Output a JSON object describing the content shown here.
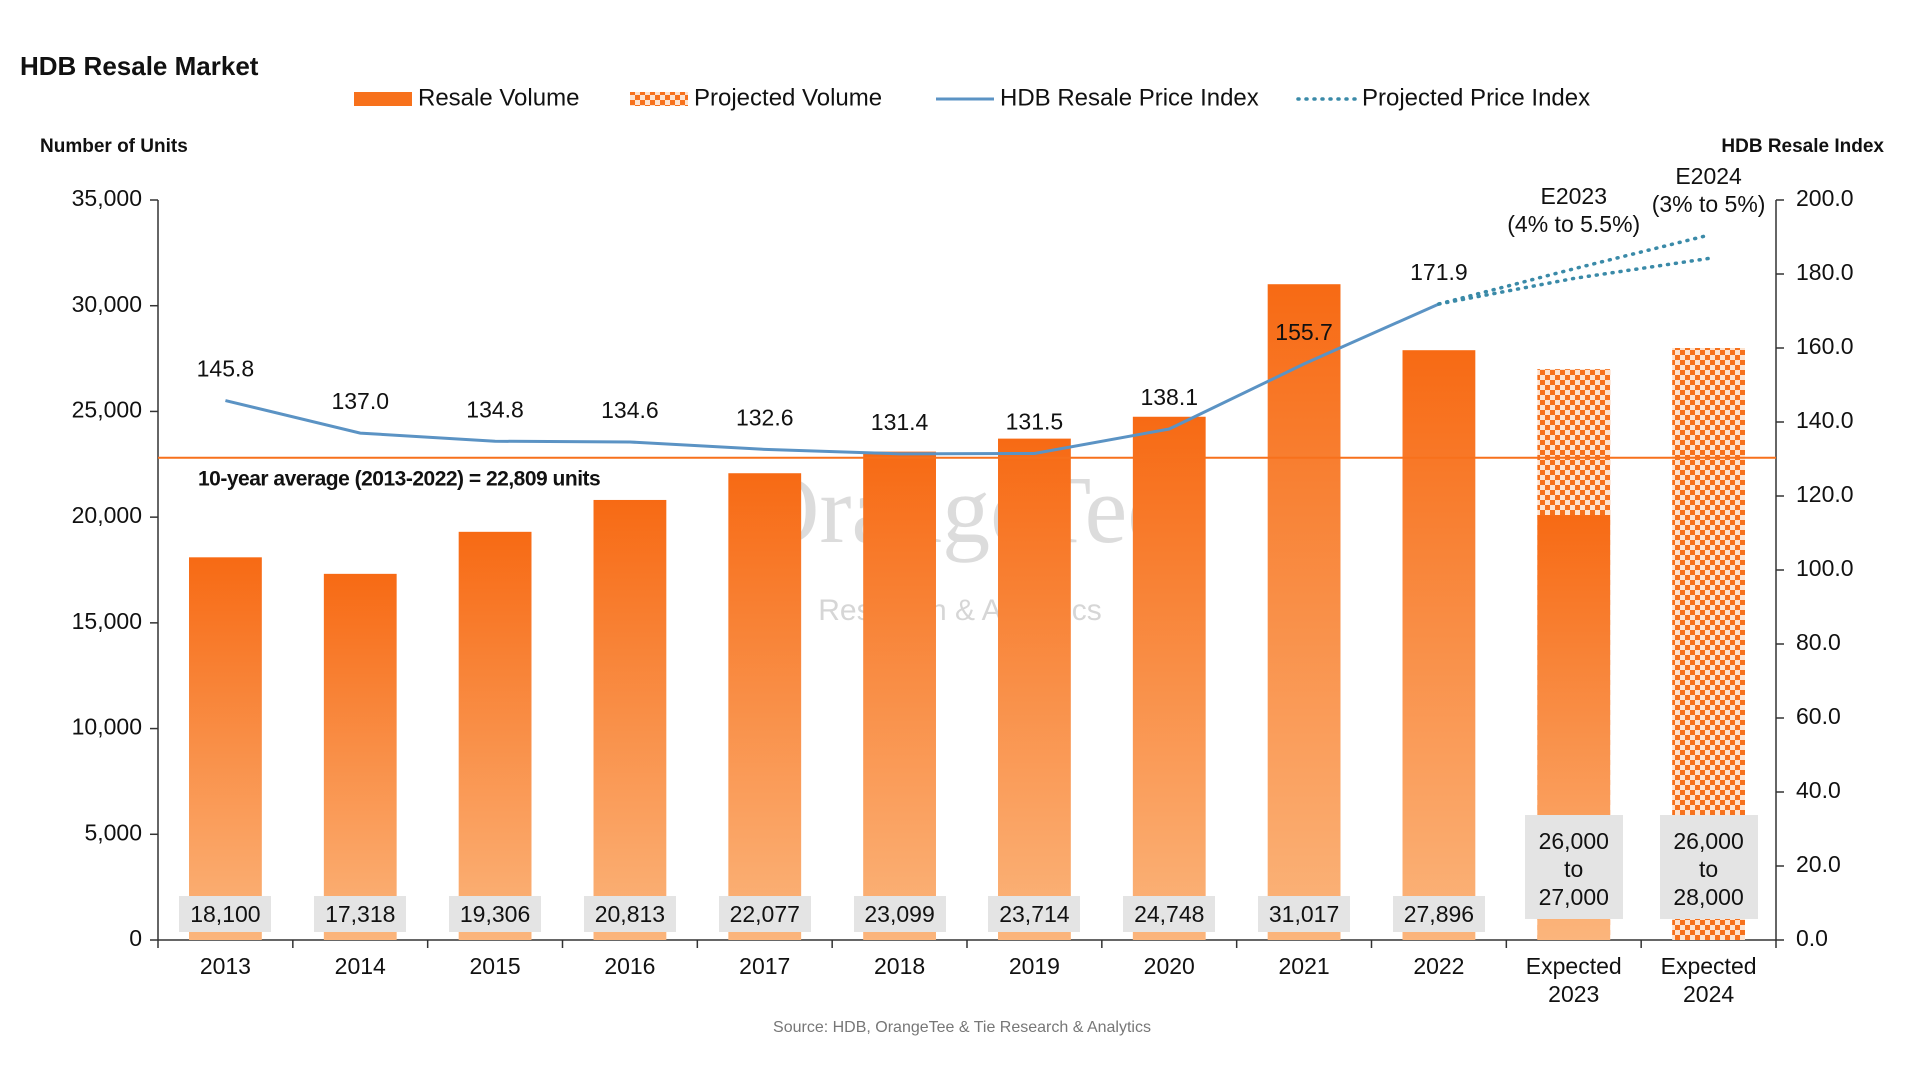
{
  "chart_data": {
    "type": "bar",
    "title": "HDB Resale Market",
    "y_label": "Number of Units",
    "y2_label": "HDB Resale Index",
    "source": "Source: HDB, OrangeTee & Tie Research & Analytics",
    "watermark": [
      "OrangeTee",
      "Research & Analytics"
    ],
    "categories": [
      "2013",
      "2014",
      "2015",
      "2016",
      "2017",
      "2018",
      "2019",
      "2020",
      "2021",
      "2022",
      "Expected 2023",
      "Expected 2024"
    ],
    "series": [
      {
        "name": "Resale Volume",
        "kind": "bar",
        "color": "#f7711c",
        "values": [
          18100,
          17318,
          19306,
          20813,
          22077,
          23099,
          23714,
          24748,
          31017,
          27896,
          20100,
          null
        ],
        "value_labels": [
          "18,100",
          "17,318",
          "19,306",
          "20,813",
          "22,077",
          "23,099",
          "23,714",
          "24,748",
          "31,017",
          "27,896",
          null,
          null
        ]
      },
      {
        "name": "Projected Volume",
        "kind": "hatched-bar",
        "color": "#f7711c",
        "values": [
          null,
          null,
          null,
          null,
          null,
          null,
          null,
          null,
          null,
          null,
          27000,
          28000
        ],
        "value_labels": [
          null,
          null,
          null,
          null,
          null,
          null,
          null,
          null,
          null,
          null,
          "26,000 to 27,000",
          "26,000 to 28,000"
        ]
      },
      {
        "name": "HDB Resale Price Index",
        "kind": "line",
        "axis": "y2",
        "color": "#5b93c4",
        "values": [
          145.8,
          137.0,
          134.8,
          134.6,
          132.6,
          131.4,
          131.5,
          138.1,
          155.7,
          171.9,
          null,
          null
        ],
        "value_labels": [
          "145.8",
          "137.0",
          "134.8",
          "134.6",
          "132.6",
          "131.4",
          "131.5",
          "138.1",
          "155.7",
          "171.9",
          null,
          null
        ]
      },
      {
        "name": "Projected Price Index",
        "kind": "dotted-line",
        "axis": "y2",
        "color": "#3a8aa8",
        "values": [
          null,
          null,
          null,
          null,
          null,
          null,
          null,
          null,
          null,
          171.9,
          181.4,
          190.5
        ],
        "low_values": [
          null,
          null,
          null,
          null,
          null,
          null,
          null,
          null,
          null,
          171.9,
          178.8,
          184.2
        ]
      }
    ],
    "annotations": [
      {
        "category": 10,
        "label": "E2023",
        "range": "(4% to 5.5%)"
      },
      {
        "category": 11,
        "label": "E2024",
        "range": "(3% to 5%)"
      }
    ],
    "average": {
      "value": 22809,
      "label": "10-year average (2013-2022) = 22,809 units",
      "color": "#f7711c"
    },
    "ylim": [
      0,
      35000
    ],
    "yticks": [
      0,
      {
        "value": 5000,
        "label": "5,000"
      },
      {
        "value": 10000,
        "label": "10,000"
      },
      {
        "value": 15000,
        "label": "15,000"
      },
      {
        "value": 20000,
        "label": "20,000"
      },
      {
        "value": 25000,
        "label": "25,000"
      },
      {
        "value": 30000,
        "label": "30,000"
      },
      {
        "value": 35000,
        "label": "35,000"
      }
    ],
    "y2lim": [
      0,
      200
    ],
    "y2ticks": [
      {
        "value": 0,
        "label": "0.0"
      },
      {
        "value": 20,
        "label": "20.0"
      },
      {
        "value": 40,
        "label": "40.0"
      },
      {
        "value": 60,
        "label": "60.0"
      },
      {
        "value": 80,
        "label": "80.0"
      },
      {
        "value": 100,
        "label": "100.0"
      },
      {
        "value": 120,
        "label": "120.0"
      },
      {
        "value": 140,
        "label": "140.0"
      },
      {
        "value": 160,
        "label": "160.0"
      },
      {
        "value": 180,
        "label": "180.0"
      },
      {
        "value": 200,
        "label": "200.0"
      }
    ],
    "grid": false
  }
}
